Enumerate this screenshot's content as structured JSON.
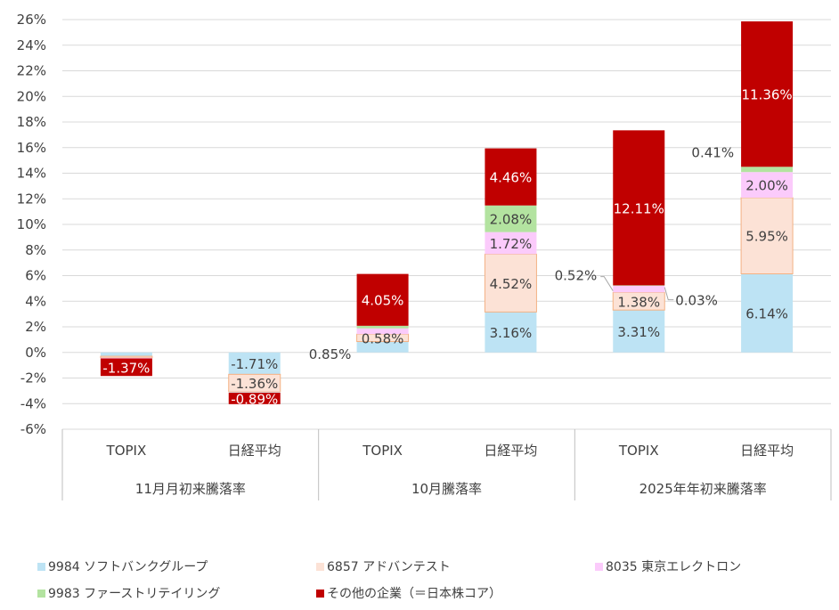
{
  "chart_data": {
    "type": "bar",
    "stacked": true,
    "ylim": [
      -6,
      26
    ],
    "yticks": [
      "-6%",
      "-4%",
      "-2%",
      "0%",
      "2%",
      "4%",
      "6%",
      "8%",
      "10%",
      "12%",
      "14%",
      "16%",
      "18%",
      "20%",
      "22%",
      "24%",
      "26%"
    ],
    "grid": true,
    "legend_position": "bottom",
    "groups": [
      "11月月初来騰落率",
      "10月騰落率",
      "2025年年初来騰落率"
    ],
    "categories": [
      "TOPIX",
      "日経平均",
      "TOPIX",
      "日経平均",
      "TOPIX",
      "日経平均"
    ],
    "series": [
      {
        "name": "9984  ソフトバンクグループ",
        "color": "#BDE3F4",
        "values": [
          -0.3,
          -1.71,
          0.85,
          3.16,
          3.31,
          6.14
        ],
        "labels": [
          "",
          "-1.71%",
          "0.85%",
          "3.16%",
          "3.31%",
          "6.14%"
        ]
      },
      {
        "name": "6857  アドバンテスト",
        "color": "#FCE2D6",
        "values": [
          -0.12,
          -1.36,
          0.58,
          4.52,
          1.38,
          5.95
        ],
        "labels": [
          "",
          "-1.36%",
          "0.58%",
          "4.52%",
          "1.38%",
          "5.95%"
        ]
      },
      {
        "name": "8035  東京エレクトロン",
        "color": "#FBCBFB",
        "values": [
          -0.05,
          -0.05,
          0.45,
          1.72,
          0.52,
          2.0
        ],
        "labels": [
          "",
          "",
          "",
          "1.72%",
          "0.52%",
          "2.00%"
        ]
      },
      {
        "name": "9983  ファーストリテイリング",
        "color": "#B3E3A0",
        "values": [
          0.0,
          -0.03,
          0.2,
          2.08,
          0.03,
          0.41
        ],
        "labels": [
          "",
          "",
          "",
          "2.08%",
          "0.03%",
          "0.41%"
        ]
      },
      {
        "name": "その他の企業（＝日本株コア）",
        "color": "#C00000",
        "values": [
          -1.37,
          -0.89,
          4.05,
          4.46,
          12.11,
          11.36
        ],
        "labels": [
          "-1.37%",
          "-0.89%",
          "4.05%",
          "4.46%",
          "12.11%",
          "11.36%"
        ]
      }
    ]
  }
}
